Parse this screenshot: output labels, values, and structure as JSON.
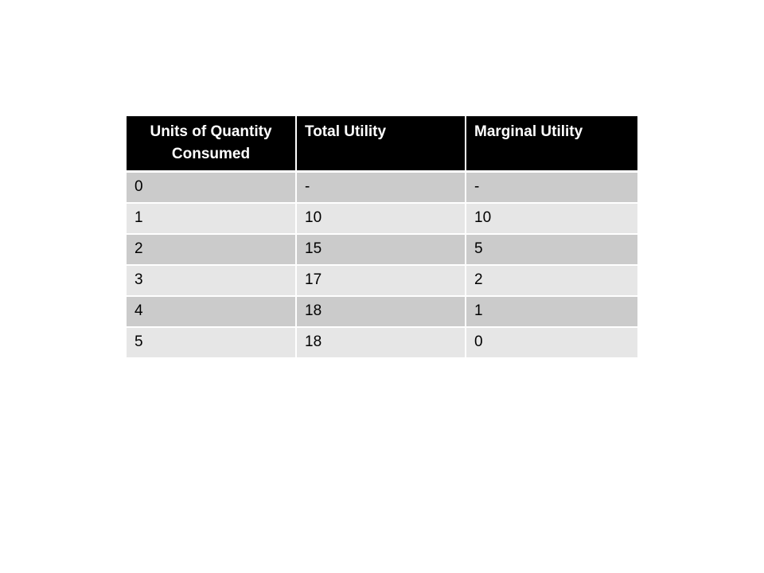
{
  "table": {
    "headers": [
      "Units of Quantity Consumed",
      "Total Utility",
      "Marginal Utility"
    ],
    "rows": [
      [
        "0",
        "-",
        "-"
      ],
      [
        "1",
        "10",
        "10"
      ],
      [
        "2",
        "15",
        "5"
      ],
      [
        "3",
        "17",
        "2"
      ],
      [
        "4",
        "18",
        "1"
      ],
      [
        "5",
        "18",
        "0"
      ]
    ]
  },
  "colors": {
    "header_background": "#000000",
    "header_text": "#ffffff",
    "row_dark": "#cbcbcb",
    "row_light": "#e6e6e6"
  }
}
